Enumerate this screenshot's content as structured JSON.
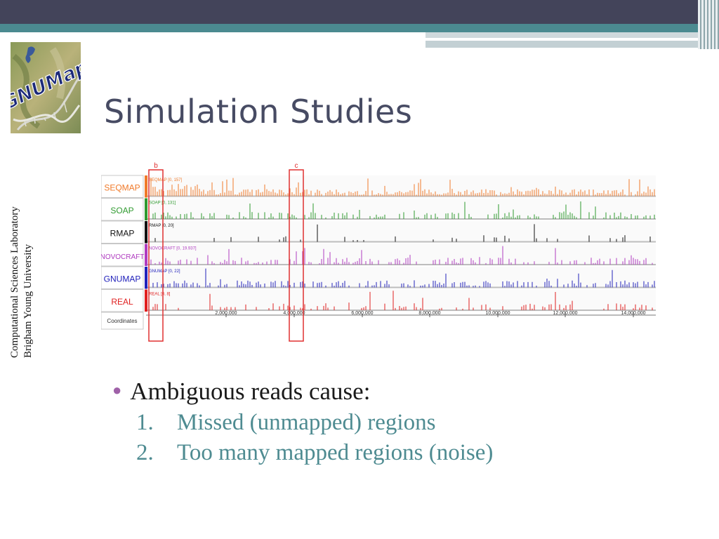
{
  "slide": {
    "title": "Simulation Studies",
    "logo_text": "GNUMap",
    "side_text": [
      "Computational Sciences Laboratory",
      "Brigham Young University"
    ]
  },
  "bullets": {
    "main": "Ambiguous reads cause:",
    "items": [
      {
        "num": "1.",
        "text": "Missed (unmapped) regions"
      },
      {
        "num": "2.",
        "text": "Too many mapped regions (noise)"
      }
    ]
  },
  "chart_data": {
    "type": "bar",
    "tracks": [
      {
        "name": "SEQMAP",
        "range": "SEQMAP [0, 157]",
        "color": "#f07a2a"
      },
      {
        "name": "SOAP",
        "range": "SOAP [0, 131]",
        "color": "#2f9a2f"
      },
      {
        "name": "RMAP",
        "range": "RMAP [0, 20]",
        "color": "#111111"
      },
      {
        "name": "NOVOCRAFT",
        "range": "NOVOCRAFT [0, 19.937]",
        "color": "#b03cc0"
      },
      {
        "name": "GNUMAP",
        "range": "GNUMAP [0, 22]",
        "color": "#2222bb"
      },
      {
        "name": "REAL",
        "range": "REAL [0, 8]",
        "color": "#e02020"
      }
    ],
    "coordinates_label": "Coordinates",
    "x_ticks": [
      "2,000,000",
      "4,000,000",
      "6,000,000",
      "8,000,000",
      "10,000,000",
      "12,000,000",
      "14,000,000"
    ],
    "highlight_labels": [
      "b",
      "c"
    ],
    "highlight_color": "#e03030"
  }
}
